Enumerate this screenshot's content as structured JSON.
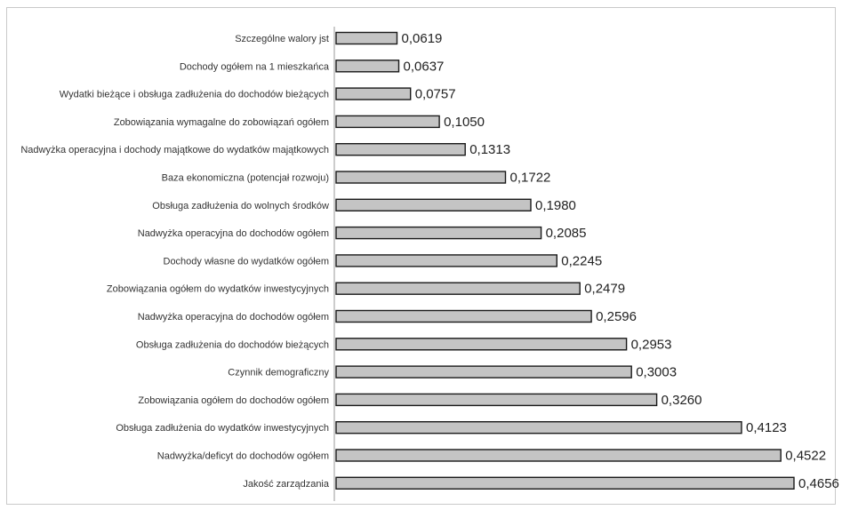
{
  "chart_data": {
    "type": "bar",
    "orientation": "horizontal",
    "categories": [
      "Szczególne walory jst",
      "Dochody ogółem na 1 mieszkańca",
      "Wydatki bieżące i obsługa zadłużenia do dochodów bieżących",
      "Zobowiązania wymagalne do zobowiązań ogółem",
      "Nadwyżka operacyjna i dochody majątkowe do wydatków majątkowych",
      "Baza ekonomiczna (potencjał rozwoju)",
      "Obsługa zadłużenia do wolnych środków",
      "Nadwyżka operacyjna do dochodów ogółem",
      "Dochody własne do wydatków ogółem",
      "Zobowiązania ogółem do wydatków inwestycyjnych",
      "Nadwyżka operacyjna do dochodów ogółem",
      "Obsługa zadłużenia do dochodów bieżących",
      "Czynnik demograficzny",
      "Zobowiązania ogółem do dochodów ogółem",
      "Obsługa zadłużenia do wydatków inwestycyjnych",
      "Nadwyżka/deficyt do dochodów ogółem",
      "Jakość zarządzania"
    ],
    "values": [
      0.0619,
      0.0637,
      0.0757,
      0.105,
      0.1313,
      0.1722,
      0.198,
      0.2085,
      0.2245,
      0.2479,
      0.2596,
      0.2953,
      0.3003,
      0.326,
      0.4123,
      0.4522,
      0.4656
    ],
    "value_labels": [
      "0,0619",
      "0,0637",
      "0,0757",
      "0,1050",
      "0,1313",
      "0,1722",
      "0,1980",
      "0,2085",
      "0,2245",
      "0,2479",
      "0,2596",
      "0,2953",
      "0,3003",
      "0,3260",
      "0,4123",
      "0,4522",
      "0,4656"
    ],
    "xlim": [
      0,
      0.4656
    ],
    "grid": false,
    "legend": "none",
    "bar_color": "#c4c4c4",
    "bar_edge_color": "#1a1a1a"
  }
}
